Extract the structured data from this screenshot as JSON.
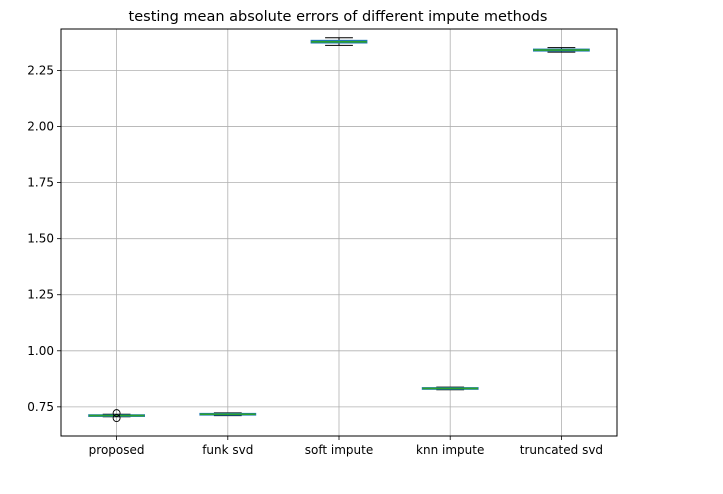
{
  "chart_data": {
    "type": "box",
    "title": "testing mean absolute errors of different impute methods",
    "xlabel": "",
    "ylabel": "",
    "ylim": [
      0.62,
      2.435
    ],
    "yticks": [
      0.75,
      1.0,
      1.25,
      1.5,
      1.75,
      2.0,
      2.25
    ],
    "ytick_labels": [
      "0.75",
      "1.00",
      "1.25",
      "1.50",
      "1.75",
      "2.00",
      "2.25"
    ],
    "grid": true,
    "categories": [
      "proposed",
      "funk svd",
      "soft impute",
      "knn impute",
      "truncated svd"
    ],
    "boxes": [
      {
        "name": "proposed",
        "whislo": 0.706,
        "q1": 0.708,
        "med": 0.711,
        "q3": 0.714,
        "whishi": 0.717,
        "fliers": [
          0.7,
          0.722
        ]
      },
      {
        "name": "funk svd",
        "whislo": 0.711,
        "q1": 0.714,
        "med": 0.717,
        "q3": 0.72,
        "whishi": 0.723,
        "fliers": []
      },
      {
        "name": "soft impute",
        "whislo": 2.362,
        "q1": 2.373,
        "med": 2.378,
        "q3": 2.384,
        "whishi": 2.396,
        "fliers": []
      },
      {
        "name": "knn impute",
        "whislo": 0.826,
        "q1": 0.829,
        "med": 0.832,
        "q3": 0.835,
        "whishi": 0.838,
        "fliers": []
      },
      {
        "name": "truncated svd",
        "whislo": 2.332,
        "q1": 2.337,
        "med": 2.341,
        "q3": 2.345,
        "whishi": 2.352,
        "fliers": []
      }
    ],
    "colors": {
      "box": "#1f77b4",
      "median": "#2ca02c",
      "whisker": "#000000",
      "grid": "#b0b0b0",
      "axes": "#000000"
    }
  }
}
